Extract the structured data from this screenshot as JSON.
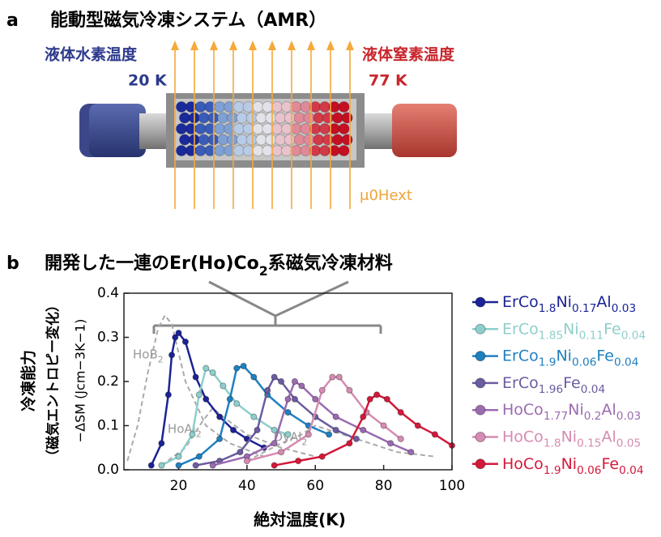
{
  "diagram": {
    "label": "a",
    "title": "能動型磁気冷凍システム（AMR）",
    "left_label": "液体水素温度",
    "left_temp": "20 K",
    "right_label": "液体窒素温度",
    "right_temp": "77 K",
    "field_label": "μ0Hext"
  },
  "chart_data": {
    "type": "line",
    "label": "b",
    "title": "開発した一連のEr(Ho)Co2系磁気冷凍材料",
    "y_label_lines": [
      "冷凍能力",
      "（磁気エントロピー変化）",
      "−ΔSM (Jcm−3K−1)"
    ],
    "x_label": "絶対温度(K)",
    "xlim": [
      4,
      100
    ],
    "xticks": [
      20,
      40,
      60,
      80,
      100
    ],
    "ylim": [
      0,
      0.4
    ],
    "yticks": [
      {
        "value": 0,
        "label": "0.0"
      },
      0.1,
      0.2,
      0.3,
      0.4
    ],
    "series": [
      {
        "name": "ErCo1.8Ni0.17Al0.03",
        "color": "#1c2396",
        "x": [
          12,
          15,
          17,
          18,
          19,
          20,
          22,
          25,
          28,
          32,
          36,
          40,
          45
        ],
        "values": [
          0.01,
          0.06,
          0.17,
          0.26,
          0.3,
          0.31,
          0.29,
          0.21,
          0.16,
          0.12,
          0.09,
          0.07,
          0.05
        ]
      },
      {
        "name": "ErCo1.85Ni0.11Fe0.04",
        "color": "#8ecfcc",
        "x": [
          15,
          20,
          24,
          26,
          28,
          30,
          33,
          37,
          42,
          48,
          52
        ],
        "values": [
          0.01,
          0.03,
          0.08,
          0.17,
          0.23,
          0.22,
          0.19,
          0.15,
          0.12,
          0.09,
          0.08
        ]
      },
      {
        "name": "ErCo1.9Ni0.06Fe0.04",
        "color": "#1f80c0",
        "x": [
          20,
          26,
          32,
          35,
          37,
          39,
          42,
          46,
          52,
          58,
          64
        ],
        "values": [
          0.01,
          0.03,
          0.07,
          0.16,
          0.23,
          0.235,
          0.21,
          0.17,
          0.13,
          0.1,
          0.08
        ]
      },
      {
        "name": "ErCo1.96Fe0.04",
        "color": "#6c5ca0",
        "x": [
          25,
          32,
          38,
          43,
          46,
          48,
          50,
          54,
          60,
          66,
          72
        ],
        "values": [
          0.01,
          0.02,
          0.04,
          0.09,
          0.18,
          0.21,
          0.2,
          0.16,
          0.12,
          0.09,
          0.07
        ]
      },
      {
        "name": "HoCo1.77Ni0.2Al0.03",
        "color": "#9b6bb0",
        "x": [
          30,
          40,
          48,
          52,
          54,
          56,
          60,
          66,
          74,
          82,
          88
        ],
        "values": [
          0.01,
          0.03,
          0.06,
          0.16,
          0.2,
          0.19,
          0.16,
          0.12,
          0.09,
          0.06,
          0.04
        ]
      },
      {
        "name": "HoCo1.8Ni0.15Al0.05",
        "color": "#d68bb2",
        "x": [
          40,
          50,
          58,
          62,
          65,
          67,
          70,
          75,
          80,
          85
        ],
        "values": [
          0.02,
          0.04,
          0.08,
          0.18,
          0.21,
          0.21,
          0.18,
          0.13,
          0.1,
          0.07
        ]
      },
      {
        "name": "HoCo1.9Ni0.06Fe0.04",
        "color": "#d4193b",
        "x": [
          48,
          55,
          62,
          70,
          74,
          76,
          78,
          81,
          85,
          90,
          95,
          100
        ],
        "values": [
          0.01,
          0.02,
          0.03,
          0.06,
          0.12,
          0.16,
          0.17,
          0.16,
          0.13,
          0.1,
          0.08,
          0.055
        ]
      }
    ],
    "reference_series": [
      {
        "name": "HoB2",
        "color": "#aaaaaa",
        "x": [
          5,
          8,
          11,
          14,
          16,
          18,
          22,
          28,
          35,
          45
        ],
        "values": [
          0.02,
          0.1,
          0.22,
          0.32,
          0.35,
          0.33,
          0.2,
          0.1,
          0.06,
          0.03
        ]
      },
      {
        "name": "HoAl2",
        "color": "#aaaaaa",
        "x": [
          15,
          22,
          27,
          30,
          33,
          40,
          50,
          60
        ],
        "values": [
          0.01,
          0.05,
          0.11,
          0.14,
          0.12,
          0.08,
          0.05,
          0.03
        ]
      },
      {
        "name": "DyAl2",
        "color": "#aaaaaa",
        "x": [
          40,
          50,
          56,
          60,
          64,
          72,
          84,
          95
        ],
        "values": [
          0.02,
          0.06,
          0.08,
          0.1,
          0.09,
          0.07,
          0.04,
          0.03
        ]
      }
    ]
  }
}
